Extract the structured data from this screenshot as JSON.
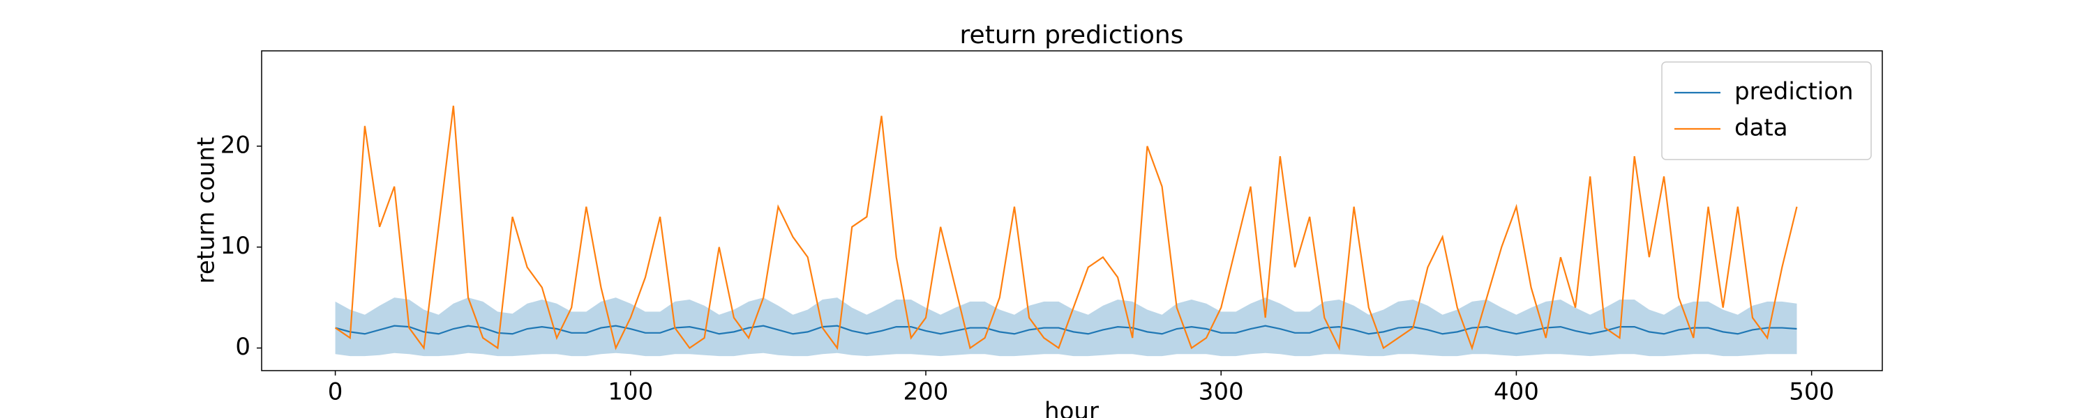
{
  "chart_data": {
    "type": "line",
    "title": "return predictions",
    "xlabel": "hour",
    "ylabel": "return count",
    "x": [
      0,
      5,
      10,
      15,
      20,
      25,
      30,
      35,
      40,
      45,
      50,
      55,
      60,
      65,
      70,
      75,
      80,
      85,
      90,
      95,
      100,
      105,
      110,
      115,
      120,
      125,
      130,
      135,
      140,
      145,
      150,
      155,
      160,
      165,
      170,
      175,
      180,
      185,
      190,
      195,
      200,
      205,
      210,
      215,
      220,
      225,
      230,
      235,
      240,
      245,
      250,
      255,
      260,
      265,
      270,
      275,
      280,
      285,
      290,
      295,
      300,
      305,
      310,
      315,
      320,
      325,
      330,
      335,
      340,
      345,
      350,
      355,
      360,
      365,
      370,
      375,
      380,
      385,
      390,
      395,
      400,
      405,
      410,
      415,
      420,
      425,
      430,
      435,
      440,
      445,
      450,
      455,
      460,
      465,
      470,
      475,
      480,
      485,
      490,
      495
    ],
    "series": [
      {
        "name": "prediction",
        "color": "#1f77b4",
        "values": [
          2.0,
          1.6,
          1.4,
          1.8,
          2.2,
          2.1,
          1.6,
          1.4,
          1.9,
          2.2,
          2.0,
          1.5,
          1.4,
          1.9,
          2.1,
          1.9,
          1.5,
          1.5,
          2.0,
          2.2,
          1.9,
          1.5,
          1.5,
          2.0,
          2.1,
          1.8,
          1.4,
          1.6,
          2.0,
          2.2,
          1.8,
          1.4,
          1.6,
          2.1,
          2.2,
          1.7,
          1.4,
          1.7,
          2.1,
          2.1,
          1.7,
          1.4,
          1.7,
          2.0,
          2.0,
          1.6,
          1.4,
          1.8,
          2.0,
          2.0,
          1.6,
          1.4,
          1.8,
          2.1,
          2.0,
          1.6,
          1.4,
          1.9,
          2.1,
          1.9,
          1.5,
          1.5,
          1.9,
          2.2,
          1.9,
          1.5,
          1.5,
          2.0,
          2.1,
          1.8,
          1.4,
          1.6,
          2.0,
          2.1,
          1.8,
          1.4,
          1.6,
          2.0,
          2.1,
          1.7,
          1.4,
          1.7,
          2.0,
          2.1,
          1.7,
          1.4,
          1.7,
          2.1,
          2.1,
          1.6,
          1.4,
          1.8,
          2.0,
          2.0,
          1.6,
          1.4,
          1.8,
          2.0,
          2.0,
          1.9
        ]
      },
      {
        "name": "data",
        "color": "#ff7f0e",
        "values": [
          2,
          1,
          22,
          12,
          16,
          2,
          0,
          12,
          24,
          5,
          1,
          0,
          13,
          8,
          6,
          1,
          4,
          14,
          6,
          0,
          3,
          7,
          13,
          2,
          0,
          1,
          10,
          3,
          1,
          5,
          14,
          11,
          9,
          2,
          0,
          12,
          13,
          23,
          9,
          1,
          3,
          12,
          6,
          0,
          1,
          5,
          14,
          3,
          1,
          0,
          4,
          8,
          9,
          7,
          1,
          20,
          16,
          4,
          0,
          1,
          4,
          10,
          16,
          3,
          19,
          8,
          13,
          3,
          0,
          14,
          4,
          0,
          1,
          2,
          8,
          11,
          4,
          0,
          5,
          10,
          14,
          6,
          1,
          9,
          4,
          17,
          2,
          1,
          19,
          9,
          17,
          5,
          1,
          14,
          4,
          14,
          3,
          1,
          8,
          14
        ]
      }
    ],
    "band": {
      "color": "#1f77b4",
      "opacity": 0.3,
      "upper": [
        4.6,
        3.8,
        3.3,
        4.2,
        5.0,
        4.8,
        3.8,
        3.3,
        4.4,
        5.0,
        4.6,
        3.6,
        3.4,
        4.4,
        4.8,
        4.4,
        3.6,
        3.6,
        4.6,
        5.0,
        4.4,
        3.6,
        3.6,
        4.6,
        4.8,
        4.2,
        3.3,
        3.8,
        4.6,
        5.0,
        4.2,
        3.3,
        3.8,
        4.8,
        5.0,
        4.0,
        3.3,
        4.0,
        4.8,
        4.8,
        4.0,
        3.3,
        4.0,
        4.6,
        4.6,
        3.8,
        3.3,
        4.2,
        4.6,
        4.6,
        3.8,
        3.3,
        4.2,
        4.8,
        4.6,
        3.8,
        3.3,
        4.4,
        4.8,
        4.4,
        3.6,
        3.6,
        4.4,
        5.0,
        4.4,
        3.6,
        3.6,
        4.6,
        4.8,
        4.2,
        3.3,
        3.8,
        4.6,
        4.8,
        4.2,
        3.3,
        3.8,
        4.6,
        4.8,
        4.0,
        3.3,
        4.0,
        4.6,
        4.8,
        4.0,
        3.3,
        4.0,
        4.8,
        4.8,
        3.8,
        3.3,
        4.2,
        4.6,
        4.6,
        3.8,
        3.3,
        4.2,
        4.6,
        4.6,
        4.4
      ],
      "lower": [
        -0.6,
        -0.8,
        -0.8,
        -0.7,
        -0.5,
        -0.6,
        -0.8,
        -0.8,
        -0.7,
        -0.5,
        -0.6,
        -0.8,
        -0.8,
        -0.7,
        -0.6,
        -0.6,
        -0.8,
        -0.8,
        -0.6,
        -0.5,
        -0.6,
        -0.8,
        -0.8,
        -0.6,
        -0.6,
        -0.7,
        -0.8,
        -0.8,
        -0.6,
        -0.5,
        -0.7,
        -0.8,
        -0.8,
        -0.6,
        -0.5,
        -0.7,
        -0.8,
        -0.7,
        -0.6,
        -0.6,
        -0.7,
        -0.8,
        -0.7,
        -0.6,
        -0.6,
        -0.8,
        -0.8,
        -0.7,
        -0.6,
        -0.6,
        -0.8,
        -0.8,
        -0.7,
        -0.6,
        -0.6,
        -0.8,
        -0.8,
        -0.6,
        -0.6,
        -0.6,
        -0.8,
        -0.8,
        -0.6,
        -0.5,
        -0.6,
        -0.8,
        -0.8,
        -0.6,
        -0.6,
        -0.7,
        -0.8,
        -0.8,
        -0.6,
        -0.6,
        -0.7,
        -0.8,
        -0.8,
        -0.6,
        -0.6,
        -0.7,
        -0.8,
        -0.7,
        -0.6,
        -0.6,
        -0.7,
        -0.8,
        -0.7,
        -0.6,
        -0.6,
        -0.8,
        -0.8,
        -0.7,
        -0.6,
        -0.6,
        -0.8,
        -0.8,
        -0.7,
        -0.6,
        -0.6,
        -0.6
      ]
    },
    "xlim": [
      -24.95,
      523.95
    ],
    "xticks": [
      0,
      100,
      200,
      300,
      400,
      500
    ],
    "ylim": [
      -2.24,
      29.44
    ],
    "yticks": [
      0,
      10,
      20
    ],
    "legend": "upper right"
  }
}
